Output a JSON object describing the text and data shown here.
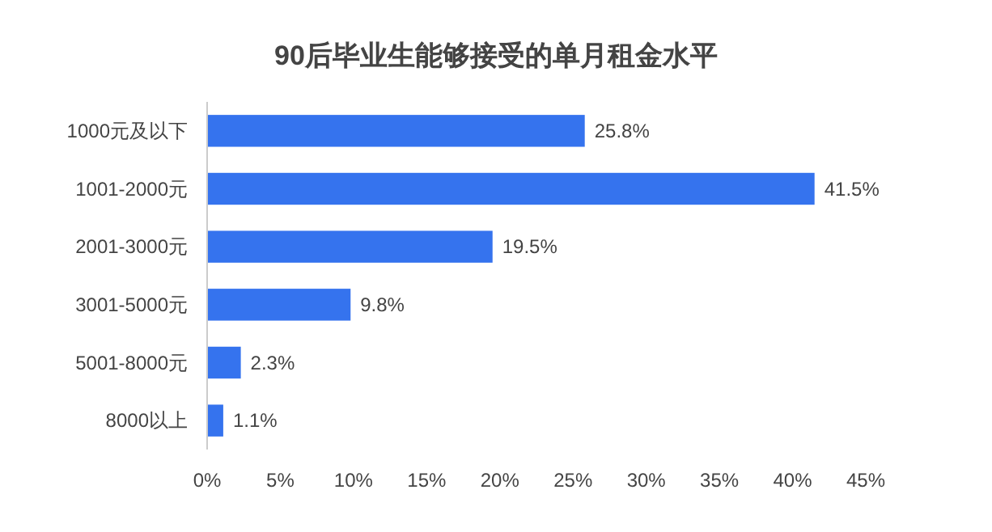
{
  "chart_data": {
    "type": "bar",
    "orientation": "horizontal",
    "title": "90后毕业生能够接受的单月租金水平",
    "categories": [
      "1000元及以下",
      "1001-2000元",
      "2001-3000元",
      "3001-5000元",
      "5001-8000元",
      "8000以上"
    ],
    "values": [
      25.8,
      41.5,
      19.5,
      9.8,
      2.3,
      1.1
    ],
    "value_labels": [
      "25.8%",
      "41.5%",
      "19.5%",
      "9.8%",
      "2.3%",
      "1.1%"
    ],
    "color": "#3573ee",
    "xlim": [
      0,
      45
    ],
    "xticks": [
      {
        "value": 0,
        "label": "0%"
      },
      {
        "value": 5,
        "label": "5%"
      },
      {
        "value": 10,
        "label": "10%"
      },
      {
        "value": 15,
        "label": "15%"
      },
      {
        "value": 20,
        "label": "20%"
      },
      {
        "value": 25,
        "label": "25%"
      },
      {
        "value": 30,
        "label": "30%"
      },
      {
        "value": 35,
        "label": "35%"
      },
      {
        "value": 40,
        "label": "40%"
      },
      {
        "value": 45,
        "label": "45%"
      }
    ],
    "grid": false
  }
}
